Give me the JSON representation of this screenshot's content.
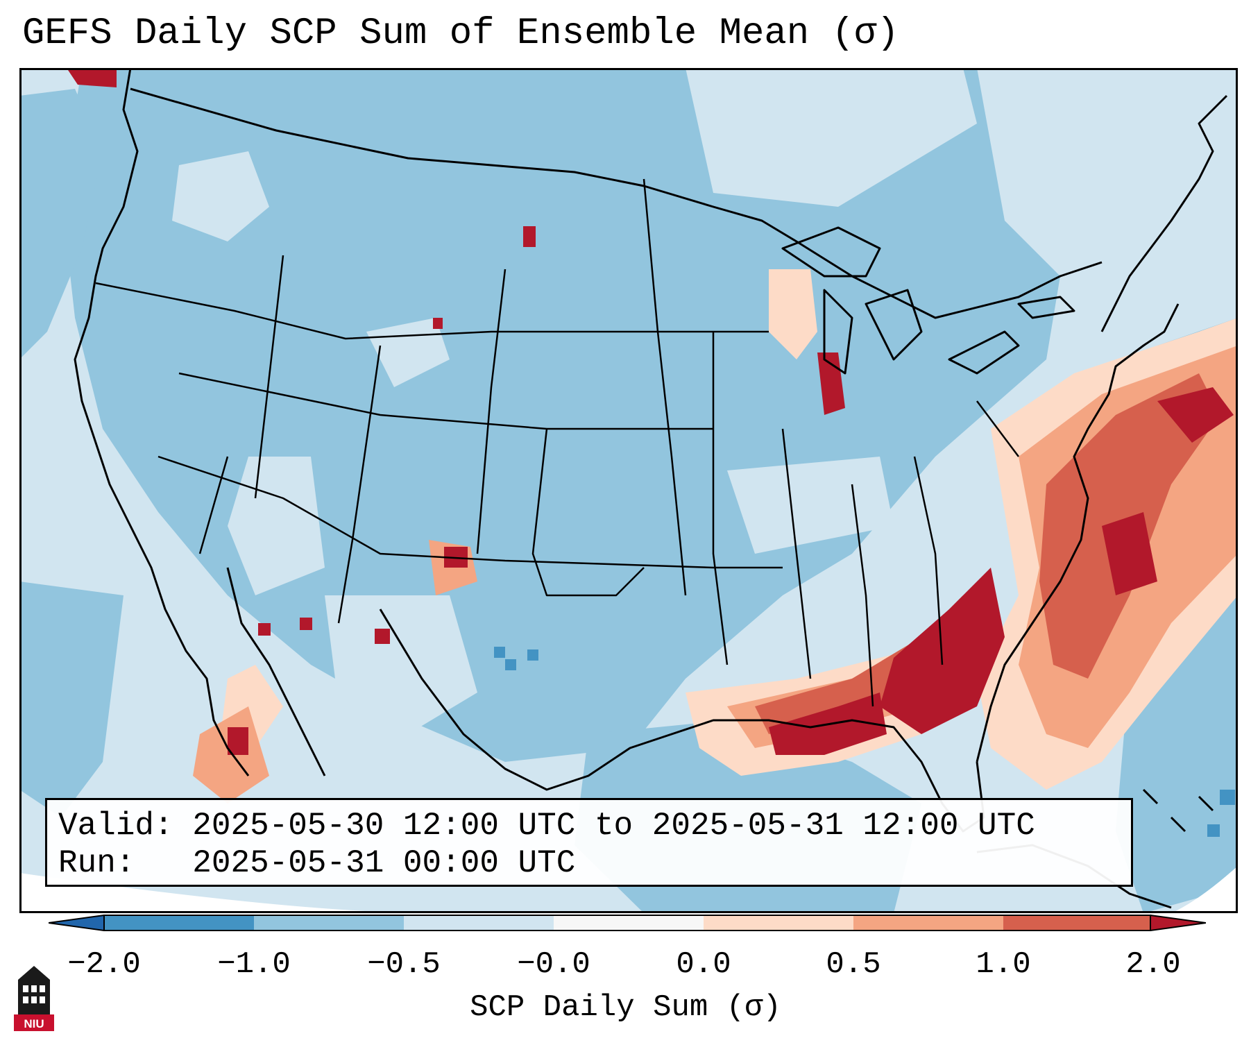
{
  "title": "GEFS Daily SCP Sum of Ensemble Mean (σ)",
  "info": {
    "valid_label": "Valid:",
    "valid_value": "2025-05-30 12:00 UTC to 2025-05-31 12:00 UTC",
    "run_label": "Run:",
    "run_value": "2025-05-31 00:00 UTC"
  },
  "colorbar": {
    "label": "SCP Daily Sum (σ)",
    "ticks": [
      "−2.0",
      "−1.0",
      "−0.5",
      "−0.0",
      "0.0",
      "0.5",
      "1.0",
      "2.0"
    ],
    "colors": {
      "under": "#2166ac",
      "bin1": "#4393c3",
      "bin2": "#92c5de",
      "bin3": "#d1e5f0",
      "bin4": "#f7f7f7",
      "bin5": "#fddbc7",
      "bin6": "#f4a582",
      "bin7": "#d6604d",
      "over": "#b2182b"
    }
  },
  "logo_text": "NIU"
}
